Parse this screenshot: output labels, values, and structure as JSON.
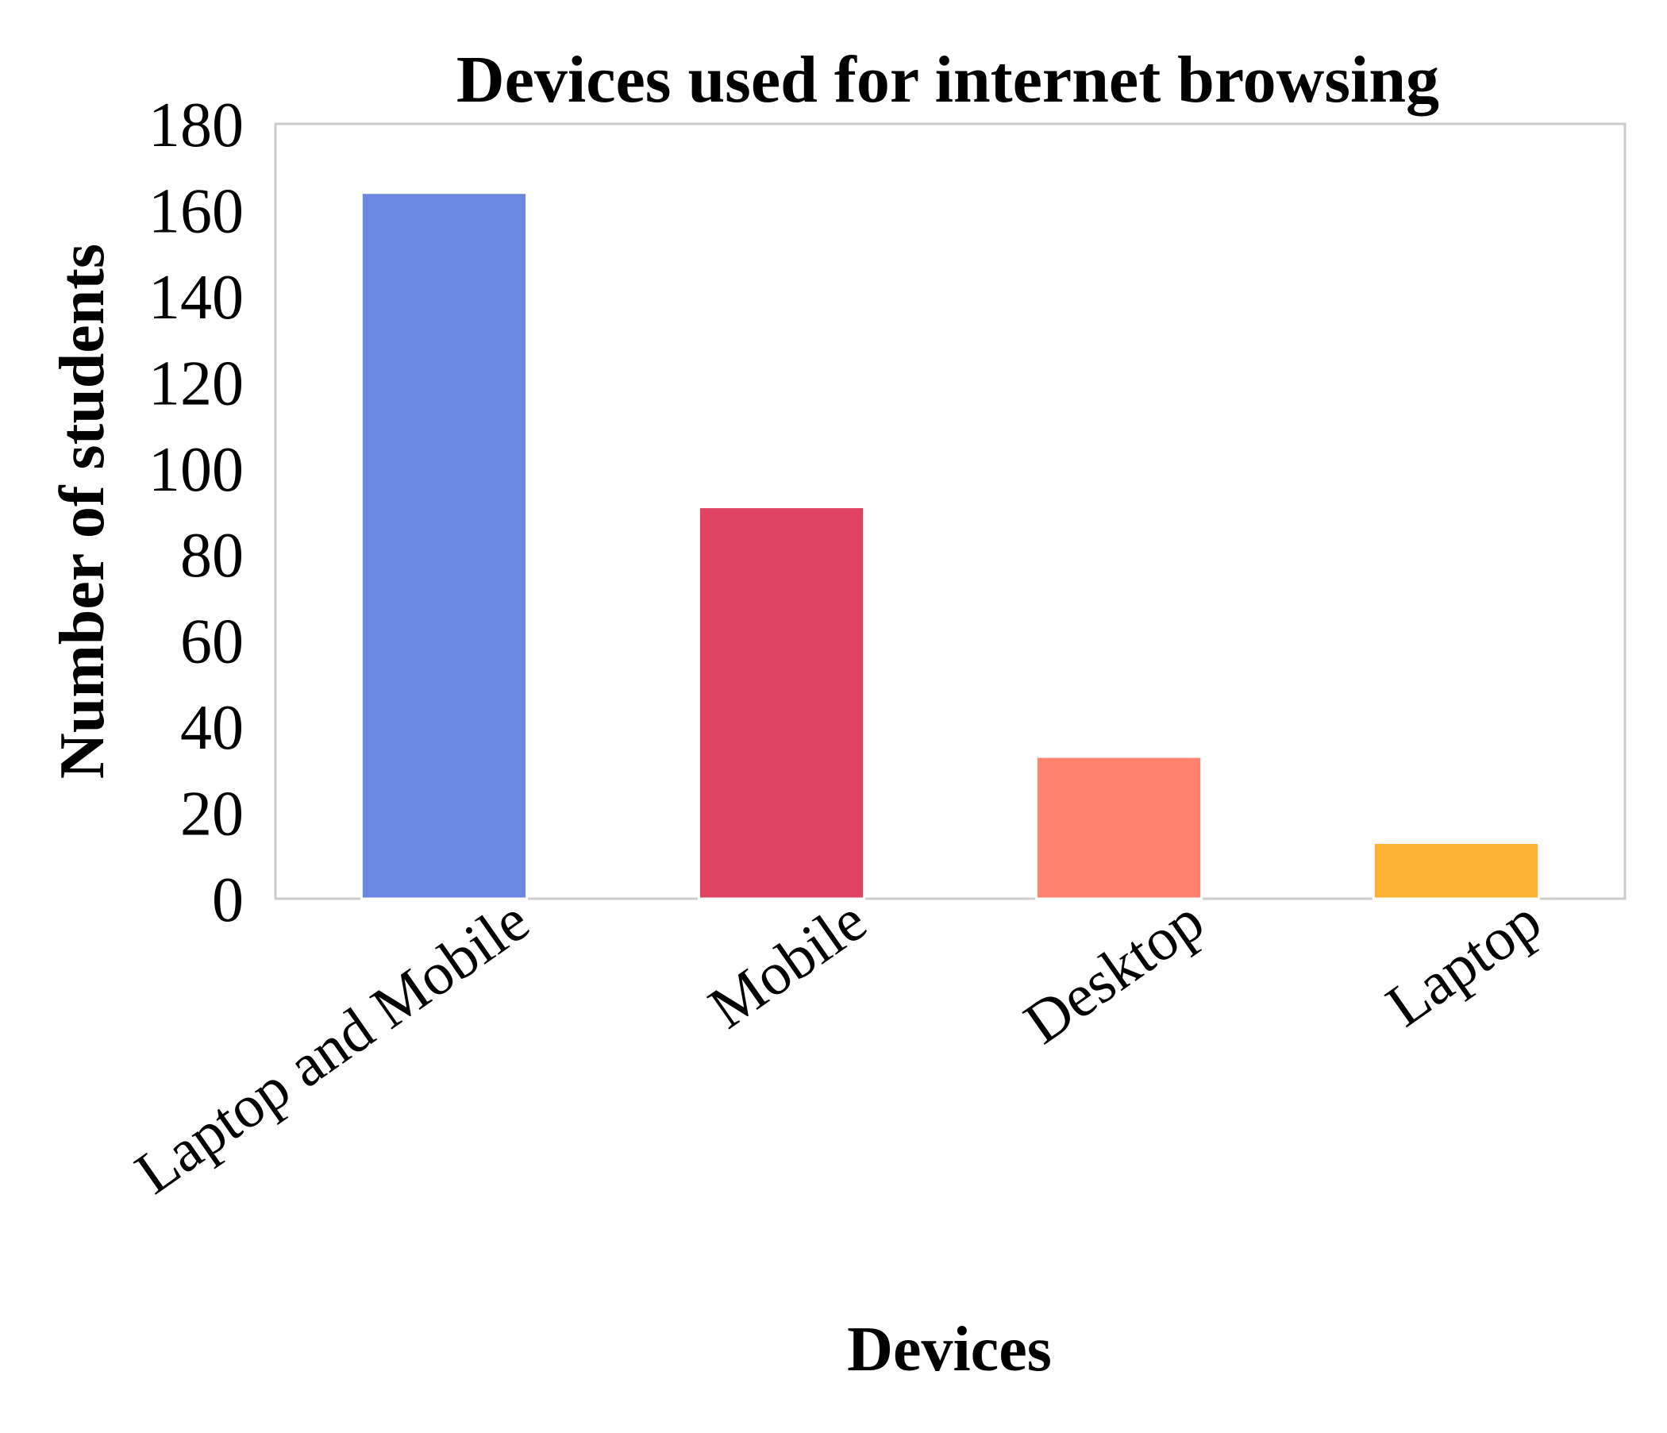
{
  "chart_data": {
    "type": "bar",
    "title": "Devices used for internet browsing",
    "xlabel": "Devices",
    "ylabel": "Number of students",
    "categories": [
      "Laptop and Mobile",
      "Mobile",
      "Desktop",
      "Laptop"
    ],
    "values": [
      164,
      91,
      33,
      13
    ],
    "colors": [
      "#6987e3",
      "#e04362",
      "#ff836f",
      "#feb234"
    ],
    "ylim": [
      0,
      180
    ],
    "yticks": [
      "0",
      "20",
      "40",
      "60",
      "80",
      "100",
      "120",
      "140",
      "160",
      "180"
    ],
    "grid": false,
    "legend": "none"
  }
}
